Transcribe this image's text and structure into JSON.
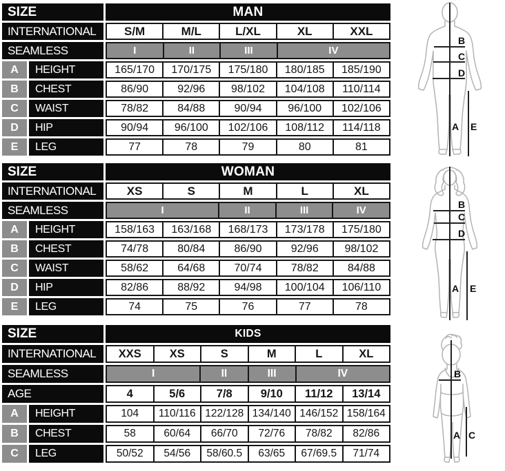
{
  "colors": {
    "table_black": "#0b0b0b",
    "seamless_gray": "#8d8d8d",
    "cell_border": "#161616",
    "figure_outline": "#b3b3b3",
    "figure_line": "#222222",
    "background": "#ffffff"
  },
  "chart_data": [
    {
      "type": "table",
      "id": "man",
      "size_label": "SIZE",
      "title": "MAN",
      "international_label": "INTERNATIONAL",
      "international": [
        "S/M",
        "M/L",
        "L/XL",
        "XL",
        "XXL"
      ],
      "seamless_label": "SEAMLESS",
      "seamless": [
        {
          "numeral": "I",
          "span": 1
        },
        {
          "numeral": "II",
          "span": 1
        },
        {
          "numeral": "III",
          "span": 1
        },
        {
          "numeral": "IV",
          "span": 2
        }
      ],
      "columns": 5,
      "measures": [
        {
          "letter": "A",
          "label": "HEIGHT",
          "values": [
            "165/170",
            "170/175",
            "175/180",
            "180/185",
            "185/190"
          ]
        },
        {
          "letter": "B",
          "label": "CHEST",
          "values": [
            "86/90",
            "92/96",
            "98/102",
            "104/108",
            "110/114"
          ]
        },
        {
          "letter": "C",
          "label": "WAIST",
          "values": [
            "78/82",
            "84/88",
            "90/94",
            "96/100",
            "102/106"
          ]
        },
        {
          "letter": "D",
          "label": "HIP",
          "values": [
            "90/94",
            "96/100",
            "102/106",
            "108/112",
            "114/118"
          ]
        },
        {
          "letter": "E",
          "label": "LEG",
          "values": [
            "77",
            "78",
            "79",
            "80",
            "81"
          ]
        }
      ]
    },
    {
      "type": "table",
      "id": "woman",
      "size_label": "SIZE",
      "title": "WOMAN",
      "international_label": "INTERNATIONAL",
      "international": [
        "XS",
        "S",
        "M",
        "L",
        "XL"
      ],
      "seamless_label": "SEAMLESS",
      "seamless": [
        {
          "numeral": "I",
          "span": 2
        },
        {
          "numeral": "II",
          "span": 1
        },
        {
          "numeral": "III",
          "span": 1
        },
        {
          "numeral": "IV",
          "span": 1
        }
      ],
      "columns": 5,
      "measures": [
        {
          "letter": "A",
          "label": "HEIGHT",
          "values": [
            "158/163",
            "163/168",
            "168/173",
            "173/178",
            "175/180"
          ]
        },
        {
          "letter": "B",
          "label": "CHEST",
          "values": [
            "74/78",
            "80/84",
            "86/90",
            "92/96",
            "98/102"
          ]
        },
        {
          "letter": "C",
          "label": "WAIST",
          "values": [
            "58/62",
            "64/68",
            "70/74",
            "78/82",
            "84/88"
          ]
        },
        {
          "letter": "D",
          "label": "HIP",
          "values": [
            "82/86",
            "88/92",
            "94/98",
            "100/104",
            "106/110"
          ]
        },
        {
          "letter": "E",
          "label": "LEG",
          "values": [
            "74",
            "75",
            "76",
            "77",
            "78"
          ]
        }
      ]
    },
    {
      "type": "table",
      "id": "kids",
      "size_label": "SIZE",
      "title": "KIDS",
      "international_label": "INTERNATIONAL",
      "international": [
        "XXS",
        "XS",
        "S",
        "M",
        "L",
        "XL"
      ],
      "seamless_label": "SEAMLESS",
      "seamless": [
        {
          "numeral": "I",
          "span": 2
        },
        {
          "numeral": "II",
          "span": 1
        },
        {
          "numeral": "III",
          "span": 1
        },
        {
          "numeral": "IV",
          "span": 2
        }
      ],
      "age_label": "AGE",
      "age": [
        "4",
        "5/6",
        "7/8",
        "9/10",
        "11/12",
        "13/14"
      ],
      "columns": 6,
      "measures": [
        {
          "letter": "A",
          "label": "HEIGHT",
          "values": [
            "104",
            "110/116",
            "122/128",
            "134/140",
            "146/152",
            "158/164"
          ]
        },
        {
          "letter": "B",
          "label": "CHEST",
          "values": [
            "58",
            "60/64",
            "66/70",
            "72/76",
            "78/82",
            "82/86"
          ]
        },
        {
          "letter": "C",
          "label": "LEG",
          "values": [
            "50/52",
            "54/56",
            "58/60.5",
            "63/65",
            "67/69.5",
            "71/74"
          ]
        }
      ]
    }
  ],
  "figures": [
    {
      "name": "man",
      "labels": {
        "inner_leg": "A",
        "chest": "B",
        "waist": "C",
        "hip": "D",
        "outer_leg": "E"
      }
    },
    {
      "name": "woman",
      "labels": {
        "inner_leg": "A",
        "chest": "B",
        "waist": "C",
        "hip": "D",
        "outer_leg": "E"
      }
    },
    {
      "name": "child",
      "labels": {
        "inner_leg": "A",
        "chest": "B",
        "outer_leg": "C"
      }
    }
  ]
}
